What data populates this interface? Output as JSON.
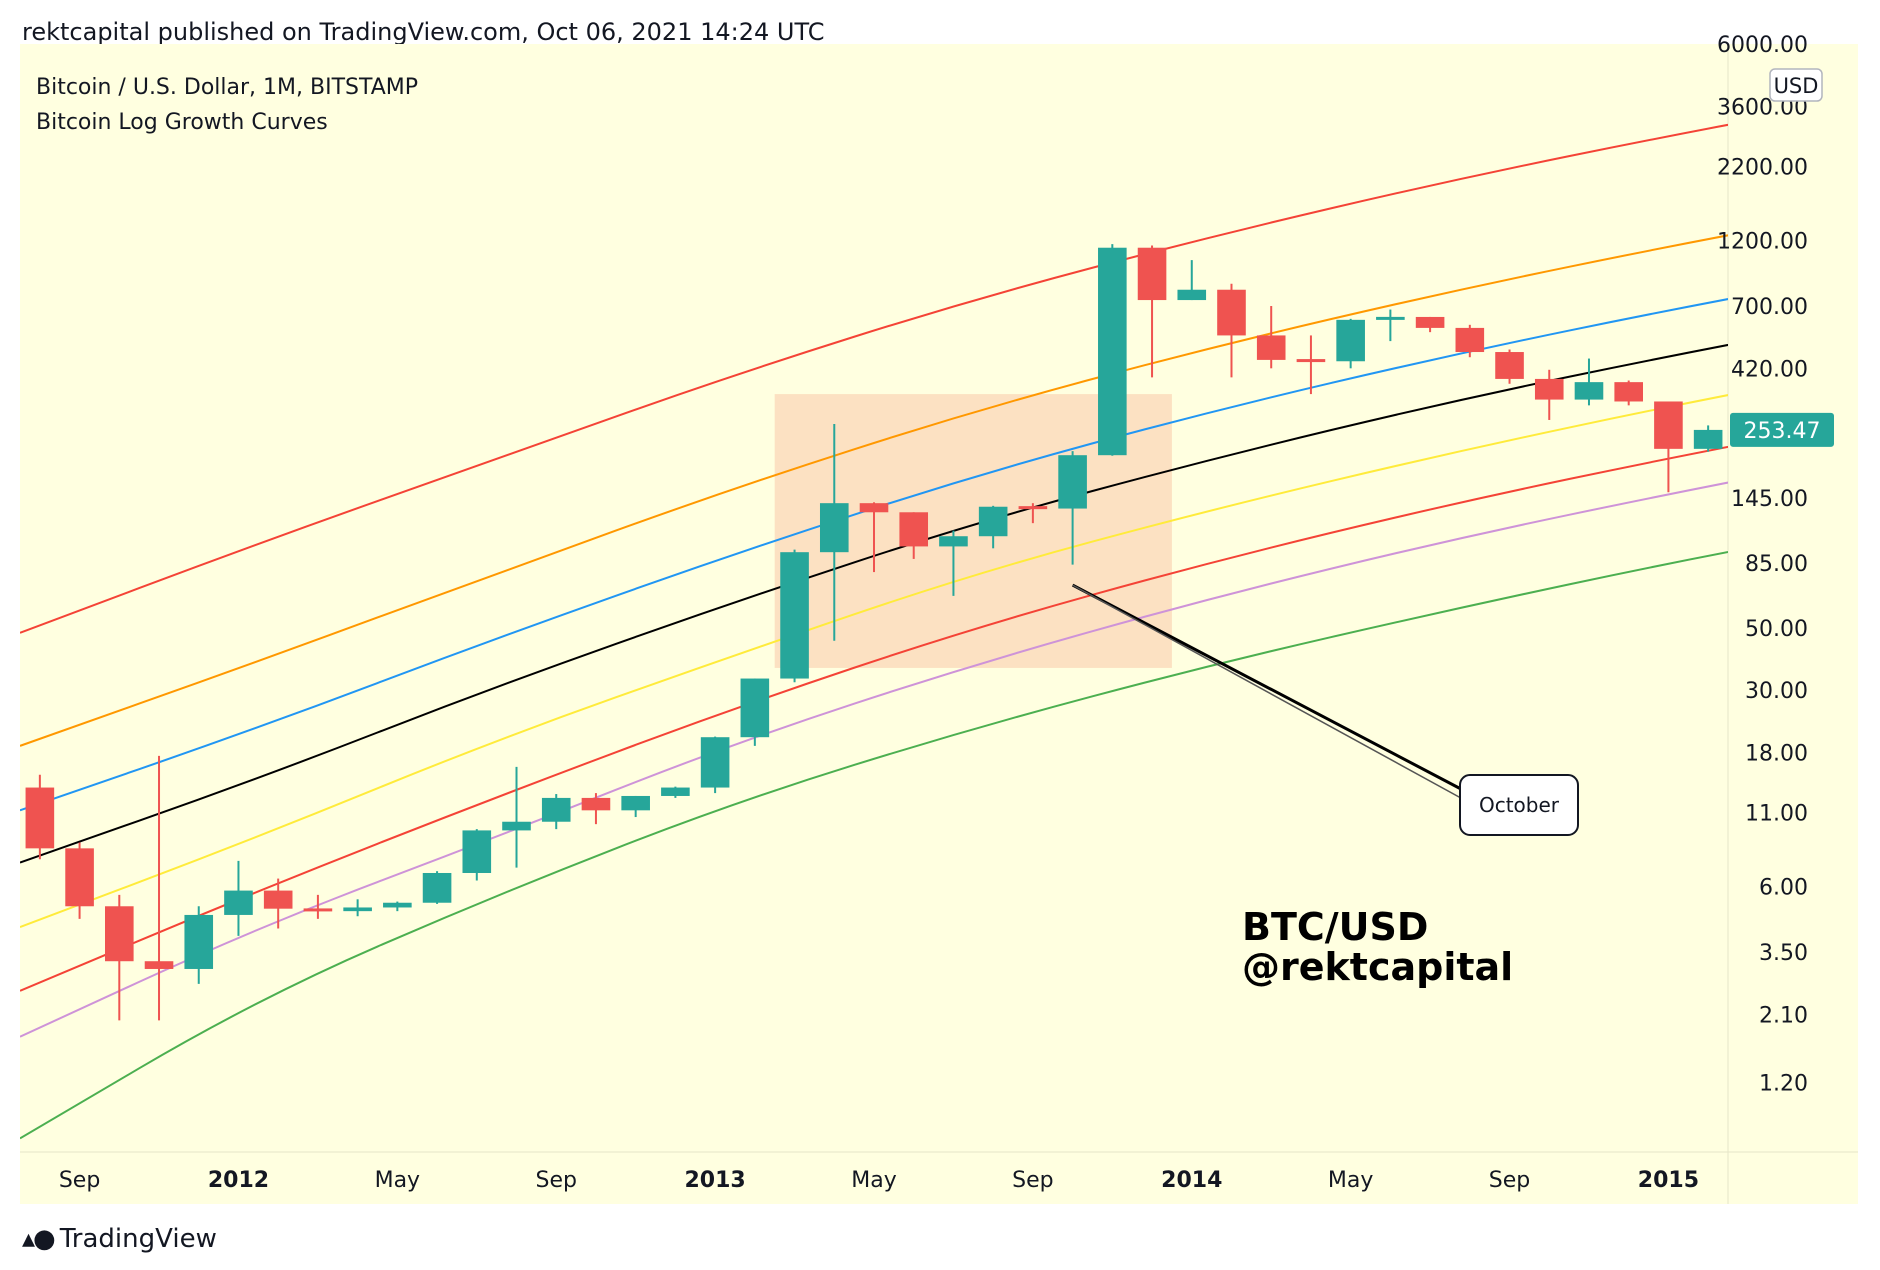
{
  "header": {
    "published": "rektcapital published on TradingView.com, Oct 06, 2021 14:24 UTC"
  },
  "footer": {
    "brand": "TradingView"
  },
  "colors": {
    "background": "#ffffe0",
    "up": "#26a69a",
    "down": "#ef5350",
    "highlight_box": "#fcdcbc",
    "curve_colors": [
      "#4caf50",
      "#ce93d8",
      "#f44336",
      "#ffeb3b",
      "#000000",
      "#2196f3",
      "#ff9800",
      "#f44336"
    ]
  },
  "chart_data": {
    "type": "candlestick",
    "title": "Bitcoin / U.S. Dollar, 1M, BITSTAMP",
    "subtitle": "Bitcoin Log Growth Curves",
    "currency_label": "USD",
    "last_price_label": "253.47",
    "y_scale": "log",
    "ylim": [
      0.68,
      6000
    ],
    "x_range": [
      "2011-08-01",
      "2015-02-01"
    ],
    "y_ticks": [
      "6000.00",
      "3600.00",
      "2200.00",
      "1200.00",
      "700.00",
      "420.00",
      "145.00",
      "85.00",
      "50.00",
      "30.00",
      "18.00",
      "11.00",
      "6.00",
      "3.50",
      "2.10",
      "1.20"
    ],
    "x_ticks": [
      {
        "label": "Sep",
        "bold": false
      },
      {
        "label": "2012",
        "bold": true
      },
      {
        "label": "May",
        "bold": false
      },
      {
        "label": "Sep",
        "bold": false
      },
      {
        "label": "2013",
        "bold": true
      },
      {
        "label": "May",
        "bold": false
      },
      {
        "label": "Sep",
        "bold": false
      },
      {
        "label": "2014",
        "bold": true
      },
      {
        "label": "May",
        "bold": false
      },
      {
        "label": "Sep",
        "bold": false
      },
      {
        "label": "2015",
        "bold": true
      }
    ],
    "candles": [
      {
        "date": "2011-08",
        "o": 13.5,
        "h": 15.0,
        "l": 7.5,
        "c": 8.2
      },
      {
        "date": "2011-09",
        "o": 8.2,
        "h": 8.6,
        "l": 4.6,
        "c": 5.1
      },
      {
        "date": "2011-10",
        "o": 5.1,
        "h": 5.6,
        "l": 2.0,
        "c": 3.25
      },
      {
        "date": "2011-11",
        "o": 3.25,
        "h": 17.5,
        "l": 2.0,
        "c": 3.05
      },
      {
        "date": "2011-12",
        "o": 3.05,
        "h": 5.1,
        "l": 2.7,
        "c": 4.75
      },
      {
        "date": "2012-01",
        "o": 4.75,
        "h": 7.4,
        "l": 4.0,
        "c": 5.8
      },
      {
        "date": "2012-02",
        "o": 5.8,
        "h": 6.4,
        "l": 4.25,
        "c": 5.0
      },
      {
        "date": "2012-03",
        "o": 5.0,
        "h": 5.6,
        "l": 4.6,
        "c": 4.9
      },
      {
        "date": "2012-04",
        "o": 4.9,
        "h": 5.4,
        "l": 4.7,
        "c": 5.05
      },
      {
        "date": "2012-05",
        "o": 5.05,
        "h": 5.3,
        "l": 4.9,
        "c": 5.25
      },
      {
        "date": "2012-06",
        "o": 5.25,
        "h": 6.8,
        "l": 5.2,
        "c": 6.7
      },
      {
        "date": "2012-07",
        "o": 6.7,
        "h": 9.6,
        "l": 6.3,
        "c": 9.5
      },
      {
        "date": "2012-08",
        "o": 9.5,
        "h": 16.0,
        "l": 7.0,
        "c": 10.2
      },
      {
        "date": "2012-09",
        "o": 10.2,
        "h": 12.8,
        "l": 9.6,
        "c": 12.4
      },
      {
        "date": "2012-10",
        "o": 12.4,
        "h": 12.9,
        "l": 10.0,
        "c": 11.2
      },
      {
        "date": "2012-11",
        "o": 11.2,
        "h": 12.6,
        "l": 10.6,
        "c": 12.6
      },
      {
        "date": "2012-12",
        "o": 12.6,
        "h": 13.6,
        "l": 12.4,
        "c": 13.5
      },
      {
        "date": "2013-01",
        "o": 13.5,
        "h": 20.5,
        "l": 12.9,
        "c": 20.4
      },
      {
        "date": "2013-02",
        "o": 20.4,
        "h": 33.0,
        "l": 19.0,
        "c": 33.0
      },
      {
        "date": "2013-03",
        "o": 33.0,
        "h": 95.0,
        "l": 32.0,
        "c": 93.0
      },
      {
        "date": "2013-04",
        "o": 93.0,
        "h": 266.0,
        "l": 45.0,
        "c": 139.0
      },
      {
        "date": "2013-05",
        "o": 139.0,
        "h": 140.0,
        "l": 79.0,
        "c": 129.0
      },
      {
        "date": "2013-06",
        "o": 129.0,
        "h": 129.0,
        "l": 88.0,
        "c": 97.5
      },
      {
        "date": "2013-07",
        "o": 97.5,
        "h": 111.0,
        "l": 65.0,
        "c": 106.0
      },
      {
        "date": "2013-08",
        "o": 106.0,
        "h": 136.0,
        "l": 96.0,
        "c": 135.0
      },
      {
        "date": "2013-09",
        "o": 135.0,
        "h": 139.0,
        "l": 118.0,
        "c": 133.0
      },
      {
        "date": "2013-10",
        "o": 133.0,
        "h": 213.0,
        "l": 84.0,
        "c": 206.0
      },
      {
        "date": "2013-11",
        "o": 206.0,
        "h": 1163.0,
        "l": 205.0,
        "c": 1129.0
      },
      {
        "date": "2013-12",
        "o": 1129.0,
        "h": 1150.0,
        "l": 390.0,
        "c": 735.0
      },
      {
        "date": "2014-01",
        "o": 735.0,
        "h": 1020.0,
        "l": 735.0,
        "c": 800.0
      },
      {
        "date": "2014-02",
        "o": 800.0,
        "h": 840.0,
        "l": 390.0,
        "c": 550.0
      },
      {
        "date": "2014-03",
        "o": 550.0,
        "h": 700.0,
        "l": 420.0,
        "c": 450.0
      },
      {
        "date": "2014-04",
        "o": 450.0,
        "h": 550.0,
        "l": 340.0,
        "c": 445.0
      },
      {
        "date": "2014-05",
        "o": 445.0,
        "h": 630.0,
        "l": 420.0,
        "c": 625.0
      },
      {
        "date": "2014-06",
        "o": 625.0,
        "h": 680.0,
        "l": 525.0,
        "c": 640.0
      },
      {
        "date": "2014-07",
        "o": 640.0,
        "h": 640.0,
        "l": 565.0,
        "c": 585.0
      },
      {
        "date": "2014-08",
        "o": 585.0,
        "h": 600.0,
        "l": 460.0,
        "c": 480.0
      },
      {
        "date": "2014-09",
        "o": 480.0,
        "h": 490.0,
        "l": 370.0,
        "c": 385.0
      },
      {
        "date": "2014-10",
        "o": 385.0,
        "h": 415.0,
        "l": 275.0,
        "c": 325.0
      },
      {
        "date": "2014-11",
        "o": 325.0,
        "h": 455.0,
        "l": 310.0,
        "c": 375.0
      },
      {
        "date": "2014-12",
        "o": 375.0,
        "h": 380.0,
        "l": 310.0,
        "c": 320.0
      },
      {
        "date": "2015-01",
        "o": 320.0,
        "h": 320.0,
        "l": 152.0,
        "c": 217.0
      },
      {
        "date": "2015-02",
        "o": 217.0,
        "h": 263.0,
        "l": 212.0,
        "c": 253.47
      }
    ],
    "growth_curves": [
      {
        "color": "#4caf50",
        "points": [
          [
            0,
            0.76
          ],
          [
            6,
            2.4
          ],
          [
            12,
            5.6
          ],
          [
            18,
            12.0
          ],
          [
            24,
            22.0
          ],
          [
            30,
            37.0
          ],
          [
            36,
            58.0
          ],
          [
            42,
            88.0
          ],
          [
            48,
            126.0
          ]
        ]
      },
      {
        "color": "#ce93d8",
        "points": [
          [
            0,
            1.75
          ],
          [
            6,
            4.3
          ],
          [
            12,
            9.0
          ],
          [
            18,
            19.5
          ],
          [
            24,
            37.0
          ],
          [
            30,
            64.0
          ],
          [
            36,
            103.0
          ],
          [
            42,
            155.0
          ],
          [
            48,
            225.0
          ]
        ]
      },
      {
        "color": "#f44336",
        "points": [
          [
            0,
            2.55
          ],
          [
            6,
            5.8
          ],
          [
            12,
            12.5
          ],
          [
            18,
            26.0
          ],
          [
            24,
            50.0
          ],
          [
            30,
            86.0
          ],
          [
            36,
            138.0
          ],
          [
            42,
            208.0
          ],
          [
            48,
            300.0
          ]
        ]
      },
      {
        "color": "#ffeb3b",
        "points": [
          [
            0,
            4.3
          ],
          [
            6,
            9.0
          ],
          [
            12,
            20.0
          ],
          [
            18,
            40.0
          ],
          [
            24,
            78.0
          ],
          [
            30,
            132.0
          ],
          [
            36,
            210.0
          ],
          [
            42,
            318.0
          ],
          [
            48,
            460.0
          ]
        ]
      },
      {
        "color": "#000000",
        "points": [
          [
            0,
            7.3
          ],
          [
            6,
            14.5
          ],
          [
            12,
            31.0
          ],
          [
            18,
            62.0
          ],
          [
            24,
            118.0
          ],
          [
            30,
            200.0
          ],
          [
            36,
            320.0
          ],
          [
            42,
            480.0
          ],
          [
            48,
            690.0
          ]
        ]
      },
      {
        "color": "#2196f3",
        "points": [
          [
            0,
            11.2
          ],
          [
            6,
            22.0
          ],
          [
            12,
            46.0
          ],
          [
            18,
            92.0
          ],
          [
            24,
            174.0
          ],
          [
            30,
            296.0
          ],
          [
            36,
            468.0
          ],
          [
            42,
            700.0
          ],
          [
            48,
            1000.0
          ]
        ]
      },
      {
        "color": "#ff9800",
        "points": [
          [
            0,
            19.0
          ],
          [
            6,
            38.0
          ],
          [
            12,
            78.0
          ],
          [
            18,
            158.0
          ],
          [
            24,
            296.0
          ],
          [
            30,
            500.0
          ],
          [
            36,
            790.0
          ],
          [
            42,
            1180.0
          ],
          [
            48,
            1690.0
          ]
        ]
      },
      {
        "color": "#f44336",
        "points": [
          [
            0,
            48.0
          ],
          [
            6,
            100.0
          ],
          [
            12,
            200.0
          ],
          [
            18,
            400.0
          ],
          [
            24,
            740.0
          ],
          [
            30,
            1240.0
          ],
          [
            36,
            1960.0
          ],
          [
            42,
            2920.0
          ],
          [
            48,
            4180.0
          ]
        ]
      }
    ],
    "highlight_box": {
      "from": "2013-03",
      "to": "2013-12",
      "y_top": 340,
      "y_bottom": 36
    },
    "annotation": {
      "text": "October",
      "anchor_date": "2013-10",
      "anchor_value": 71
    },
    "watermark": [
      "BTC/USD",
      "@rektcapital"
    ]
  }
}
